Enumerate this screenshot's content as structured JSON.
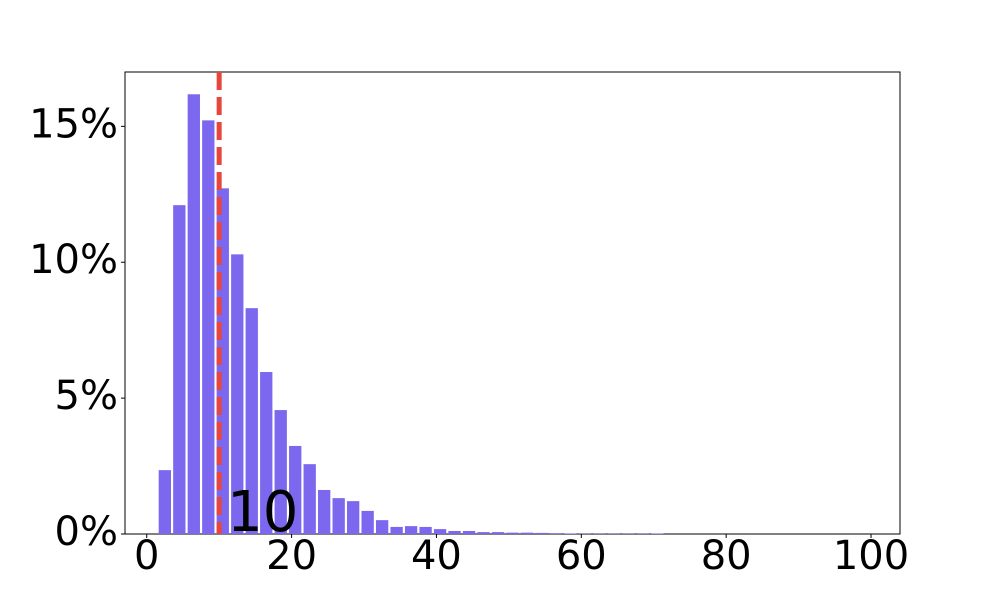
{
  "chart_data": {
    "type": "bar",
    "x": [
      2.5,
      4.5,
      6.5,
      8.5,
      10.5,
      12.5,
      14.5,
      16.5,
      18.5,
      20.5,
      22.5,
      24.5,
      26.5,
      28.5,
      30.5,
      32.5,
      34.5,
      36.5,
      38.5,
      40.5,
      42.5,
      44.5,
      46.5,
      48.5,
      50.5,
      52.5,
      54.5,
      56.5,
      58.5,
      60.5,
      62.5,
      64.5,
      66.5,
      68.5,
      70.5
    ],
    "values": [
      2.35,
      12.1,
      16.18,
      15.22,
      12.72,
      10.29,
      8.31,
      5.96,
      4.56,
      3.24,
      2.57,
      1.62,
      1.32,
      1.21,
      0.85,
      0.51,
      0.26,
      0.29,
      0.26,
      0.18,
      0.11,
      0.11,
      0.07,
      0.07,
      0.05,
      0.05,
      0.04,
      0.03,
      0.02,
      0.01,
      0.01,
      0.01,
      0.01,
      0.01,
      0.02
    ],
    "color": "#7b68ee",
    "xlim": [
      -3,
      104
    ],
    "ylim": [
      0,
      17
    ],
    "xticks": [
      0,
      20,
      40,
      60,
      80,
      100
    ],
    "yticks": [
      {
        "value": 0,
        "label": "0%"
      },
      {
        "value": 5,
        "label": "5%"
      },
      {
        "value": 10,
        "label": "10%"
      },
      {
        "value": 15,
        "label": "15%"
      }
    ],
    "vline": {
      "x": 10,
      "label": "10",
      "color": "#e8453c"
    }
  }
}
